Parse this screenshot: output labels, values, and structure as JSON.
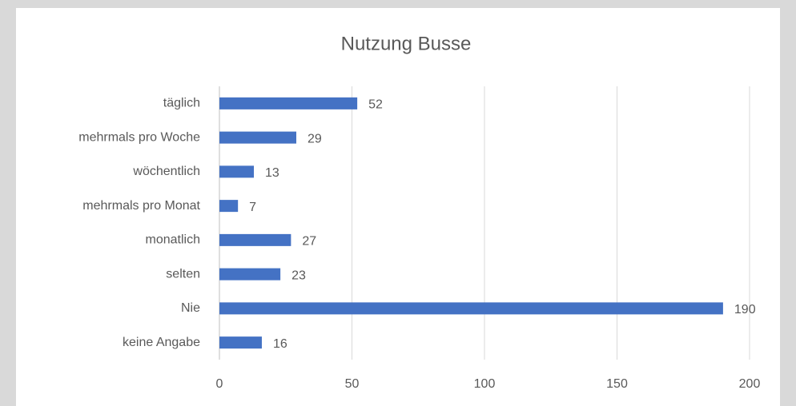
{
  "chart_data": {
    "type": "bar",
    "orientation": "horizontal",
    "title": "Nutzung Busse",
    "categories": [
      "täglich",
      "mehrmals pro Woche",
      "wöchentlich",
      "mehrmals pro Monat",
      "monatlich",
      "selten",
      "Nie",
      "keine Angabe"
    ],
    "values": [
      52,
      29,
      13,
      7,
      27,
      23,
      190,
      16
    ],
    "color": "#4472c4",
    "xlim": [
      0,
      200
    ],
    "xticks": [
      0,
      50,
      100,
      150,
      200
    ],
    "grid": true
  }
}
